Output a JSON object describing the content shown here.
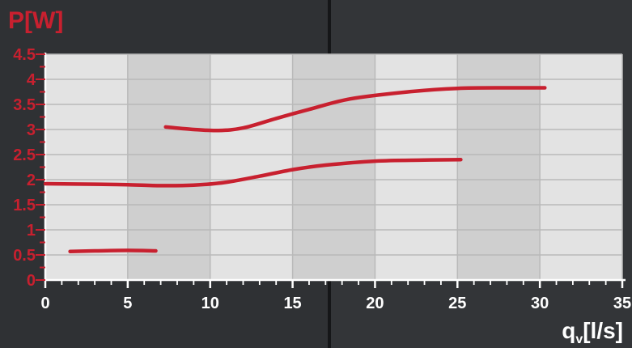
{
  "colors": {
    "accent": "#c8202f",
    "tick_text": "#ffffff",
    "plot_light": "#e3e3e3",
    "plot_dark": "#cfcfcf",
    "grid": "#b9b9b9",
    "axis": "#ffffff",
    "background": "#2b2d30"
  },
  "chart_data": {
    "type": "line",
    "title": "",
    "ylabel": "P[W]",
    "xlabel": "qv[l/s]",
    "xlabel_main": "q",
    "xlabel_sub": "v",
    "xlabel_unit": "[l/s]",
    "xlim": [
      0,
      35
    ],
    "ylim": [
      0,
      4.5
    ],
    "xticks": [
      0,
      5,
      10,
      15,
      20,
      25,
      30,
      35
    ],
    "yticks": [
      0,
      0.5,
      1,
      1.5,
      2,
      2.5,
      3,
      3.5,
      4,
      4.5
    ],
    "ytick_labels": [
      "0",
      "0.5",
      "1",
      "1.5",
      "2",
      "2.5",
      "3",
      "3.5",
      "4",
      "4.5"
    ],
    "xtick_labels": [
      "0",
      "5",
      "10",
      "15",
      "20",
      "25",
      "30",
      "35"
    ],
    "grid": true,
    "legend": "none",
    "series": [
      {
        "x": [
          1.5,
          3,
          5,
          6.7
        ],
        "y": [
          0.57,
          0.58,
          0.59,
          0.58
        ]
      },
      {
        "x": [
          0,
          3,
          5,
          7,
          9,
          11,
          13,
          15,
          17,
          20,
          23,
          25.2
        ],
        "y": [
          1.92,
          1.91,
          1.9,
          1.88,
          1.89,
          1.95,
          2.07,
          2.2,
          2.29,
          2.37,
          2.39,
          2.4
        ]
      },
      {
        "x": [
          7.3,
          9,
          10.5,
          12,
          14,
          16,
          18.5,
          22,
          25,
          28,
          30.3
        ],
        "y": [
          3.05,
          3.0,
          2.98,
          3.03,
          3.22,
          3.4,
          3.61,
          3.75,
          3.82,
          3.83,
          3.83
        ]
      }
    ]
  }
}
